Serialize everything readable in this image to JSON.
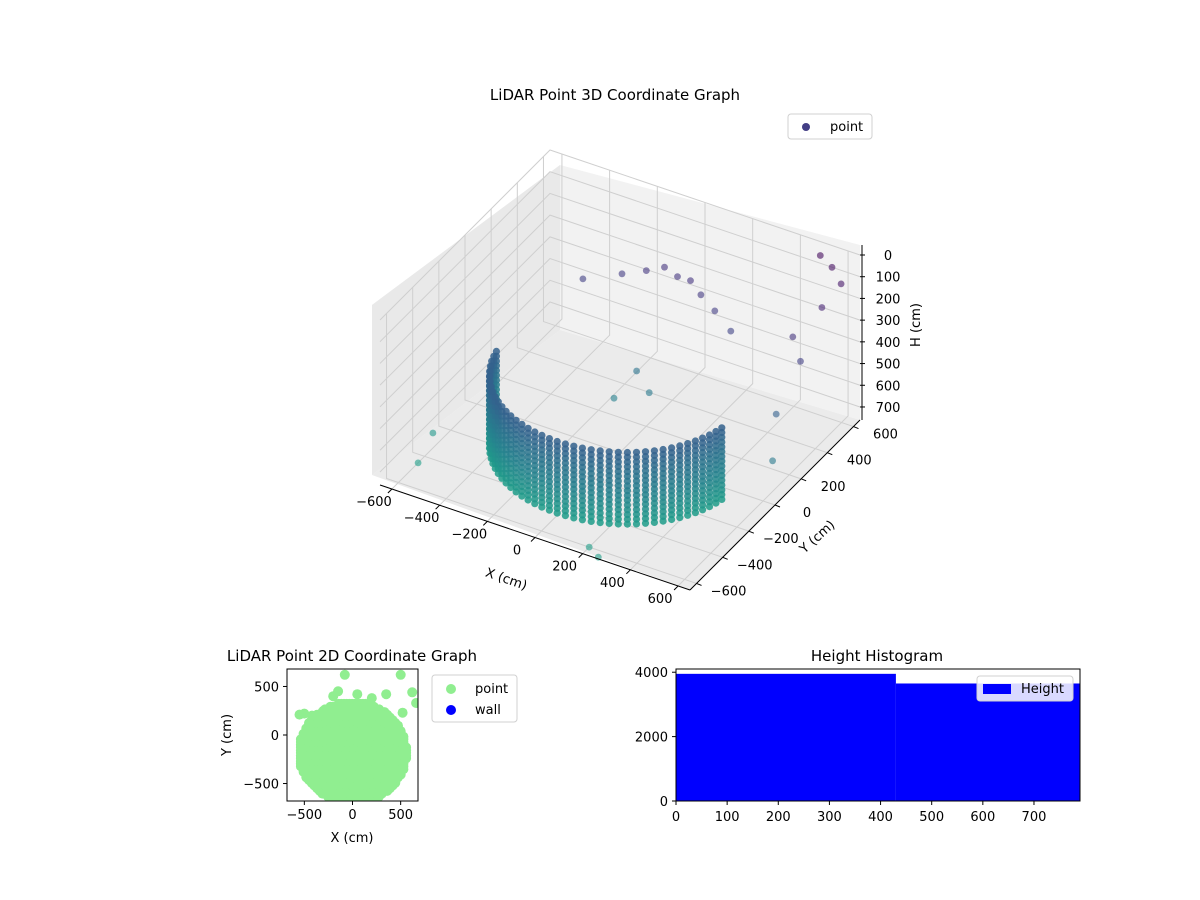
{
  "chart_data": [
    {
      "type": "scatter",
      "title": "LiDAR Point 3D Coordinate Graph",
      "xlabel": "X (cm)",
      "ylabel": "Y (cm)",
      "zlabel": "H (cm)",
      "xlim": [
        -650,
        650
      ],
      "ylim": [
        -650,
        650
      ],
      "zlim": [
        0,
        760
      ],
      "x_ticks": [
        -600,
        -400,
        -200,
        0,
        200,
        400,
        600
      ],
      "y_ticks": [
        -600,
        -400,
        -200,
        0,
        200,
        400,
        600
      ],
      "z_ticks": [
        0,
        100,
        200,
        300,
        400,
        500,
        600,
        700
      ],
      "legend": {
        "position": "upper-right",
        "labels": [
          "point"
        ]
      },
      "grid": true,
      "colormap": "viridis",
      "wall": {
        "radius": 480,
        "arc_deg": [
          190,
          350
        ],
        "h_range": [
          420,
          760
        ]
      },
      "scatter_points": [
        {
          "x": -120,
          "y": 420,
          "h": 220
        },
        {
          "x": -60,
          "y": 450,
          "h": 200
        },
        {
          "x": 0,
          "y": 440,
          "h": 215
        },
        {
          "x": 60,
          "y": 430,
          "h": 205
        },
        {
          "x": 120,
          "y": 400,
          "h": 230
        },
        {
          "x": -200,
          "y": 380,
          "h": 240
        },
        {
          "x": 200,
          "y": 360,
          "h": 250
        },
        {
          "x": -320,
          "y": 300,
          "h": 260
        },
        {
          "x": 300,
          "y": 300,
          "h": 270
        },
        {
          "x": -40,
          "y": 200,
          "h": 520
        },
        {
          "x": 40,
          "y": 150,
          "h": 560
        },
        {
          "x": -80,
          "y": 100,
          "h": 600
        },
        {
          "x": 500,
          "y": 620,
          "h": 40
        },
        {
          "x": 560,
          "y": 600,
          "h": 60
        },
        {
          "x": 620,
          "y": 560,
          "h": 90
        },
        {
          "x": 600,
          "y": 450,
          "h": 140
        },
        {
          "x": 560,
          "y": 300,
          "h": 200
        },
        {
          "x": 620,
          "y": 250,
          "h": 260
        },
        {
          "x": 600,
          "y": 100,
          "h": 420
        },
        {
          "x": 640,
          "y": 0,
          "h": 560
        },
        {
          "x": -620,
          "y": -300,
          "h": 720
        },
        {
          "x": -600,
          "y": -450,
          "h": 760
        },
        {
          "x": 200,
          "y": -600,
          "h": 760
        },
        {
          "x": 260,
          "y": -640,
          "h": 760
        }
      ]
    },
    {
      "type": "scatter",
      "title": "LiDAR Point 2D Coordinate Graph",
      "xlabel": "X (cm)",
      "ylabel": "Y (cm)",
      "xlim": [
        -680,
        680
      ],
      "ylim": [
        -680,
        680
      ],
      "x_ticks": [
        -500,
        0,
        500
      ],
      "y_ticks": [
        -500,
        0,
        500
      ],
      "legend": {
        "position": "outside-right",
        "labels": [
          "point",
          "wall"
        ]
      },
      "series": [
        {
          "name": "point",
          "color": "#90ee90"
        },
        {
          "name": "wall",
          "color": "#0000ff"
        }
      ],
      "outlier_points": [
        {
          "x": -550,
          "y": 210
        },
        {
          "x": -500,
          "y": 220
        },
        {
          "x": -420,
          "y": 200
        },
        {
          "x": -300,
          "y": 250
        },
        {
          "x": -200,
          "y": 400
        },
        {
          "x": -150,
          "y": 450
        },
        {
          "x": -80,
          "y": 620
        },
        {
          "x": 50,
          "y": 420
        },
        {
          "x": 200,
          "y": 380
        },
        {
          "x": 350,
          "y": 420
        },
        {
          "x": 500,
          "y": 620
        },
        {
          "x": 620,
          "y": 440
        },
        {
          "x": 520,
          "y": 230
        },
        {
          "x": 660,
          "y": 330
        }
      ]
    },
    {
      "type": "bar",
      "title": "Height Histogram",
      "xlabel": "",
      "ylabel": "",
      "xlim": [
        0,
        790
      ],
      "ylim": [
        0,
        4100
      ],
      "x_ticks": [
        0,
        100,
        200,
        300,
        400,
        500,
        600,
        700
      ],
      "y_ticks": [
        0,
        2000,
        4000
      ],
      "legend": {
        "position": "upper-right",
        "labels": [
          "Height"
        ]
      },
      "series": [
        {
          "name": "Height",
          "color": "#0000ff",
          "bins": [
            {
              "start": 0,
              "end": 430,
              "count": 3950
            },
            {
              "start": 430,
              "end": 790,
              "count": 3650
            }
          ]
        }
      ]
    }
  ]
}
